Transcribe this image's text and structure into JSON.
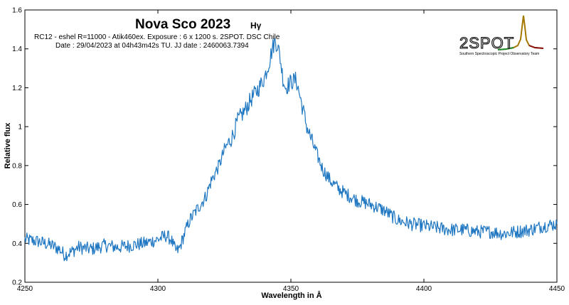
{
  "chart_data": {
    "type": "line",
    "title": "Nova Sco 2023",
    "title_suffix": "Hγ",
    "info_lines": [
      "RC12 - eshel R=11000 - Atik460ex. Exposure : 6 x 1200 s. 2SPOT. DSC Chile",
      "Date : 29/04/2023 at 04h43m42s TU. JJ date : 2460063.7394"
    ],
    "xlabel": "Wavelength in Å",
    "ylabel": "Relative flux",
    "xlim": [
      4250,
      4450
    ],
    "ylim": [
      0.2,
      1.6
    ],
    "x_ticks": [
      4250,
      4300,
      4350,
      4400,
      4450
    ],
    "y_ticks": [
      0.2,
      0.4,
      0.6,
      0.8,
      1,
      1.2,
      1.4,
      1.6
    ],
    "grid": false,
    "series": [
      {
        "color": "#1f77c1",
        "x": [
          4250,
          4255,
          4260,
          4263,
          4265,
          4268,
          4270,
          4275,
          4280,
          4285,
          4290,
          4295,
          4300,
          4303,
          4305,
          4306,
          4307,
          4308,
          4310,
          4312,
          4315,
          4318,
          4320,
          4323,
          4325,
          4328,
          4330,
          4333,
          4335,
          4338,
          4340,
          4342,
          4343,
          4344,
          4345,
          4346,
          4347,
          4348,
          4350,
          4352,
          4354,
          4356,
          4358,
          4360,
          4362,
          4365,
          4368,
          4370,
          4375,
          4380,
          4385,
          4390,
          4395,
          4400,
          4405,
          4410,
          4415,
          4420,
          4425,
          4430,
          4435,
          4440,
          4445,
          4450
        ],
        "values": [
          0.42,
          0.41,
          0.39,
          0.37,
          0.34,
          0.36,
          0.38,
          0.37,
          0.39,
          0.38,
          0.39,
          0.4,
          0.42,
          0.44,
          0.42,
          0.38,
          0.36,
          0.37,
          0.45,
          0.52,
          0.58,
          0.64,
          0.72,
          0.8,
          0.88,
          0.95,
          1.03,
          1.09,
          1.14,
          1.2,
          1.25,
          1.34,
          1.4,
          1.44,
          1.42,
          1.35,
          1.25,
          1.2,
          1.23,
          1.24,
          1.12,
          1.0,
          0.92,
          0.85,
          0.78,
          0.72,
          0.68,
          0.66,
          0.62,
          0.6,
          0.57,
          0.52,
          0.5,
          0.49,
          0.48,
          0.47,
          0.47,
          0.46,
          0.46,
          0.45,
          0.46,
          0.47,
          0.49,
          0.5
        ]
      }
    ]
  },
  "logo": {
    "text": "2SPOT",
    "subtitle": "Southern Spectroscopic Project Observatory Team"
  }
}
